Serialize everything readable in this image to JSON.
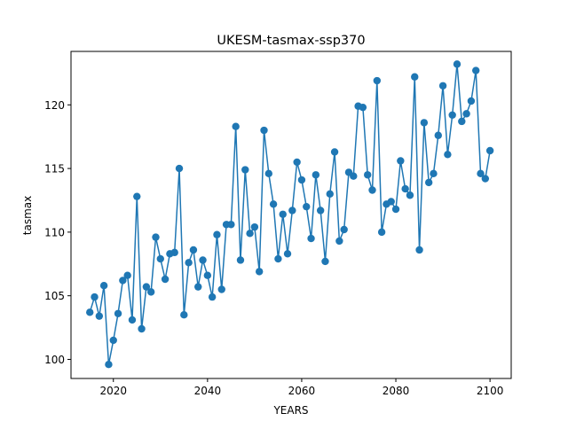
{
  "chart_data": {
    "type": "line",
    "title": "UKESM-tasmax-ssp370",
    "xlabel": "YEARS",
    "ylabel": "tasmax",
    "xlim": [
      2011,
      2104.5
    ],
    "ylim": [
      98.5,
      124.2
    ],
    "xticks": [
      2020,
      2040,
      2060,
      2080,
      2100
    ],
    "yticks": [
      100,
      105,
      110,
      115,
      120
    ],
    "grid": false,
    "series": [
      {
        "color": "#1f77b4",
        "marker": "circle",
        "x": [
          2015,
          2016,
          2017,
          2018,
          2019,
          2020,
          2021,
          2022,
          2023,
          2024,
          2025,
          2026,
          2027,
          2028,
          2029,
          2030,
          2031,
          2032,
          2033,
          2034,
          2035,
          2036,
          2037,
          2038,
          2039,
          2040,
          2041,
          2042,
          2043,
          2044,
          2045,
          2046,
          2047,
          2048,
          2049,
          2050,
          2051,
          2052,
          2053,
          2054,
          2055,
          2056,
          2057,
          2058,
          2059,
          2060,
          2061,
          2062,
          2063,
          2064,
          2065,
          2066,
          2067,
          2068,
          2069,
          2070,
          2071,
          2072,
          2073,
          2074,
          2075,
          2076,
          2077,
          2078,
          2079,
          2080,
          2081,
          2082,
          2083,
          2084,
          2085,
          2086,
          2087,
          2088,
          2089,
          2090,
          2091,
          2092,
          2093,
          2094,
          2095,
          2096,
          2097,
          2098,
          2099,
          2100
        ],
        "values": [
          103.7,
          104.9,
          103.4,
          105.8,
          99.6,
          101.5,
          103.6,
          106.2,
          106.6,
          103.1,
          112.8,
          102.4,
          105.7,
          105.3,
          109.6,
          107.9,
          106.3,
          108.3,
          108.4,
          115.0,
          103.5,
          107.6,
          108.6,
          105.7,
          107.8,
          106.6,
          104.9,
          109.8,
          105.5,
          110.6,
          110.6,
          118.3,
          107.8,
          114.9,
          109.9,
          110.4,
          106.9,
          118.0,
          114.6,
          112.2,
          107.9,
          111.4,
          108.3,
          111.7,
          115.5,
          114.1,
          112.0,
          109.5,
          114.5,
          111.7,
          107.7,
          113.0,
          116.3,
          109.3,
          110.2,
          114.7,
          114.4,
          119.9,
          119.8,
          114.5,
          113.3,
          121.9,
          110.0,
          112.2,
          112.4,
          111.8,
          115.6,
          113.4,
          112.9,
          122.2,
          108.6,
          118.6,
          113.9,
          114.6,
          117.6,
          121.5,
          116.1,
          119.2,
          123.2,
          118.7,
          119.3,
          120.3,
          122.7,
          114.6,
          114.2,
          116.4
        ]
      }
    ]
  }
}
